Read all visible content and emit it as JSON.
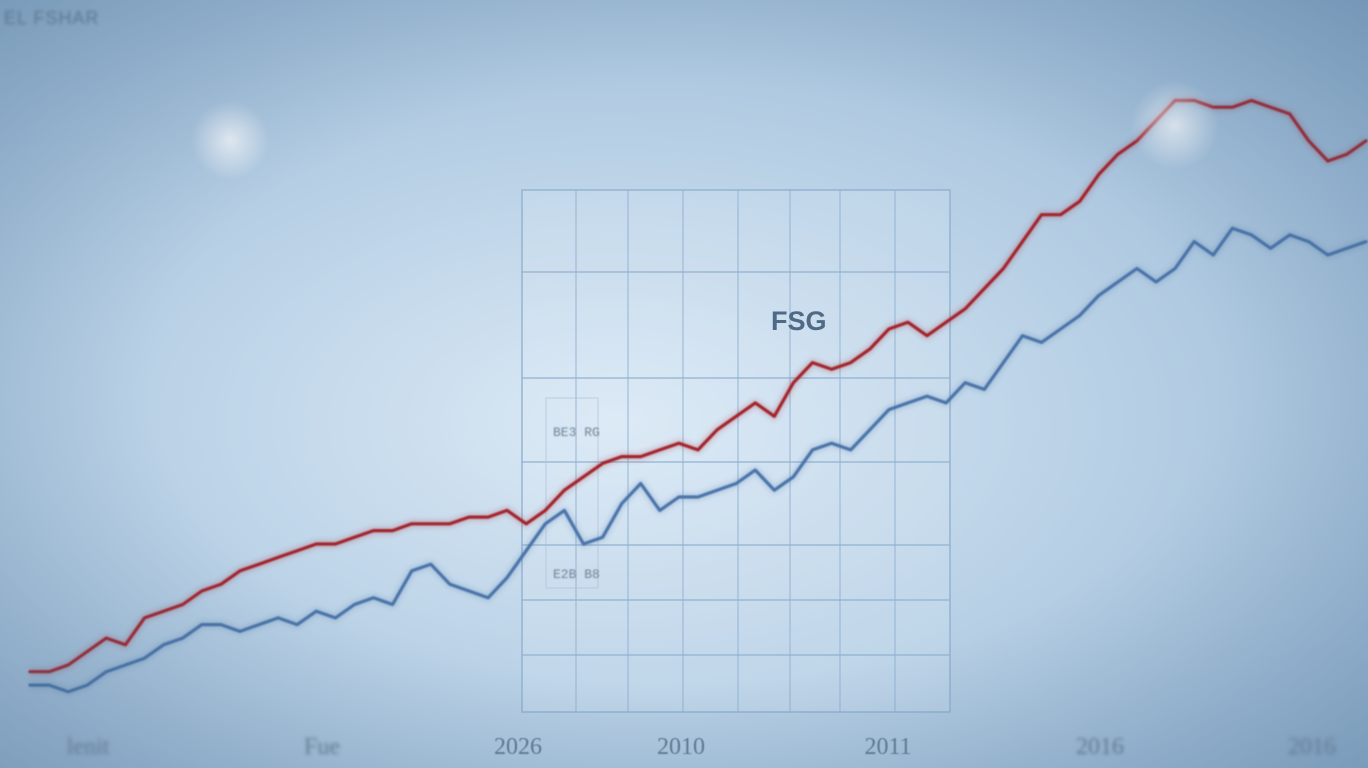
{
  "chart_data": {
    "type": "line",
    "title": "FSG",
    "corner_title": "EL FSHAR",
    "box_labels": [
      "BE3 RG",
      "E2B B8"
    ],
    "x_tick_labels": [
      "lenit",
      "Fue",
      "2026",
      "2010",
      "2011",
      "2016",
      "2016"
    ],
    "colors": {
      "series_0": "#a3232b",
      "series_1": "#4873a8",
      "grid": "#88a8c7",
      "axis": "#3b4f63"
    },
    "grid": true,
    "legend": "none",
    "x": [
      0,
      1,
      2,
      3,
      4,
      5,
      6,
      7,
      8,
      9,
      10,
      11,
      12,
      13,
      14,
      15,
      16,
      17,
      18,
      19,
      20,
      21,
      22,
      23,
      24,
      25,
      26,
      27,
      28,
      29,
      30,
      31,
      32,
      33,
      34,
      35,
      36,
      37,
      38,
      39,
      40,
      41,
      42,
      43,
      44,
      45,
      46,
      47,
      48,
      49,
      50,
      51,
      52,
      53,
      54,
      55,
      56,
      57,
      58,
      59,
      60,
      61,
      62,
      63,
      64,
      65,
      66,
      67,
      68,
      69,
      70
    ],
    "ylim": [
      0,
      100
    ],
    "series": [
      {
        "values": [
          6,
          6,
          7,
          9,
          11,
          10,
          14,
          15,
          16,
          18,
          19,
          21,
          22,
          23,
          24,
          25,
          25,
          26,
          27,
          27,
          28,
          28,
          28,
          29,
          29,
          30,
          28,
          30,
          33,
          35,
          37,
          38,
          38,
          39,
          40,
          39,
          42,
          44,
          46,
          44,
          49,
          52,
          51,
          52,
          54,
          57,
          58,
          56,
          58,
          60,
          63,
          66,
          70,
          74,
          74,
          76,
          80,
          83,
          85,
          88,
          91,
          91,
          90,
          90,
          91,
          90,
          89,
          85,
          82,
          83,
          85
        ],
        "smooth": false
      },
      {
        "values": [
          4,
          4,
          3,
          4,
          6,
          7,
          8,
          10,
          11,
          13,
          13,
          12,
          13,
          14,
          13,
          15,
          14,
          16,
          17,
          16,
          21,
          22,
          19,
          18,
          17,
          20,
          24,
          28,
          30,
          25,
          26,
          31,
          34,
          30,
          32,
          32,
          33,
          34,
          36,
          33,
          35,
          39,
          40,
          39,
          42,
          45,
          46,
          47,
          46,
          49,
          48,
          52,
          56,
          55,
          57,
          59,
          62,
          64,
          66,
          64,
          66,
          70,
          68,
          72,
          71,
          69,
          71,
          70,
          68,
          69,
          70
        ],
        "smooth": false
      }
    ]
  }
}
